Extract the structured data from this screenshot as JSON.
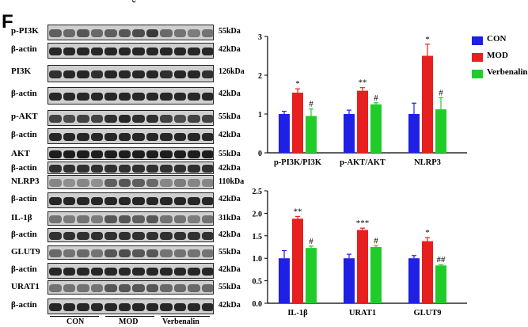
{
  "figure": {
    "panel_letter": "F",
    "top_fragment": "cel"
  },
  "blots": [
    {
      "label": "p-PI3K",
      "size": "55kDa",
      "pattern": [
        0.55,
        0.5,
        0.6,
        0.5,
        0.55,
        0.6,
        0.65,
        0.75,
        0.5,
        0.45,
        0.4,
        0.45
      ]
    },
    {
      "label": "β-actin",
      "size": "42kDa",
      "pattern": [
        0.85,
        0.85,
        0.85,
        0.85,
        0.85,
        0.85,
        0.85,
        0.85,
        0.85,
        0.85,
        0.85,
        0.85
      ]
    },
    {
      "label": "PI3K",
      "size": "126kDa",
      "pattern": [
        0.8,
        0.85,
        0.85,
        0.8,
        0.85,
        0.85,
        0.85,
        0.85,
        0.8,
        0.85,
        0.85,
        0.8
      ]
    },
    {
      "label": "β-actin",
      "size": "42kDa",
      "pattern": [
        0.85,
        0.85,
        0.85,
        0.85,
        0.85,
        0.85,
        0.85,
        0.85,
        0.85,
        0.85,
        0.85,
        0.85
      ]
    },
    {
      "label": "p-AKT",
      "size": "55kDa",
      "pattern": [
        0.7,
        0.65,
        0.7,
        0.7,
        0.8,
        0.85,
        0.8,
        0.8,
        0.7,
        0.65,
        0.7,
        0.7
      ]
    },
    {
      "label": "β-actin",
      "size": "42kDa",
      "pattern": [
        0.85,
        0.85,
        0.85,
        0.85,
        0.85,
        0.85,
        0.85,
        0.85,
        0.85,
        0.85,
        0.85,
        0.85
      ]
    },
    {
      "label": "AKT",
      "size": "55kDa",
      "pattern": [
        0.9,
        0.9,
        0.9,
        0.9,
        0.9,
        0.9,
        0.9,
        0.9,
        0.9,
        0.9,
        0.9,
        0.9
      ]
    },
    {
      "label": "β-actin",
      "size": "42kDa",
      "pattern": [
        0.8,
        0.8,
        0.8,
        0.8,
        0.8,
        0.8,
        0.8,
        0.8,
        0.8,
        0.8,
        0.8,
        0.8
      ]
    },
    {
      "label": "NLRP3",
      "size": "110kDa",
      "pattern": [
        0.35,
        0.3,
        0.35,
        0.3,
        0.55,
        0.6,
        0.55,
        0.5,
        0.35,
        0.4,
        0.35,
        0.35
      ]
    },
    {
      "label": "β-actin",
      "size": "42kDa",
      "pattern": [
        0.85,
        0.85,
        0.85,
        0.85,
        0.85,
        0.85,
        0.85,
        0.85,
        0.85,
        0.85,
        0.85,
        0.85
      ]
    },
    {
      "label": "IL-1β",
      "size": "31kDa",
      "pattern": [
        0.45,
        0.4,
        0.45,
        0.4,
        0.6,
        0.6,
        0.55,
        0.6,
        0.45,
        0.45,
        0.4,
        0.45
      ]
    },
    {
      "label": "β-actin",
      "size": "42kDa",
      "pattern": [
        0.8,
        0.8,
        0.8,
        0.8,
        0.8,
        0.8,
        0.8,
        0.8,
        0.8,
        0.8,
        0.8,
        0.8
      ]
    },
    {
      "label": "GLUT9",
      "size": "55kDa",
      "pattern": [
        0.5,
        0.45,
        0.5,
        0.45,
        0.6,
        0.65,
        0.6,
        0.6,
        0.45,
        0.45,
        0.45,
        0.45
      ]
    },
    {
      "label": "β-actin",
      "size": "42kDa",
      "pattern": [
        0.85,
        0.85,
        0.85,
        0.85,
        0.85,
        0.85,
        0.85,
        0.85,
        0.85,
        0.85,
        0.85,
        0.85
      ]
    },
    {
      "label": "URAT1",
      "size": "55kDa",
      "pattern": [
        0.45,
        0.45,
        0.45,
        0.45,
        0.6,
        0.6,
        0.6,
        0.6,
        0.5,
        0.5,
        0.5,
        0.5
      ]
    },
    {
      "label": "β-actin",
      "size": "42kDa",
      "pattern": [
        0.85,
        0.85,
        0.85,
        0.85,
        0.85,
        0.85,
        0.85,
        0.85,
        0.85,
        0.85,
        0.85,
        0.85
      ]
    }
  ],
  "blot_groups": [
    "CON",
    "MOD",
    "Verbenalin"
  ],
  "legend": [
    {
      "name": "CON",
      "color": "#1f1fe6"
    },
    {
      "name": "MOD",
      "color": "#e61f1f"
    },
    {
      "name": "Verbenalin",
      "color": "#1fcc2a"
    }
  ],
  "chart_data": [
    {
      "type": "bar",
      "categories": [
        "p-PI3K/PI3K",
        "p-AKT/AKT",
        "NLRP3"
      ],
      "series": [
        {
          "name": "CON",
          "values": [
            1.0,
            1.0,
            1.0
          ],
          "errors": [
            0.07,
            0.1,
            0.28
          ]
        },
        {
          "name": "MOD",
          "values": [
            1.55,
            1.6,
            2.5
          ],
          "errors": [
            0.1,
            0.08,
            0.3
          ]
        },
        {
          "name": "Verbenalin",
          "values": [
            0.95,
            1.25,
            1.12
          ],
          "errors": [
            0.18,
            0.04,
            0.3
          ]
        }
      ],
      "annotations": [
        [
          "",
          "*",
          "#"
        ],
        [
          "",
          "**",
          "#"
        ],
        [
          "",
          "*",
          "#"
        ]
      ],
      "ylim": [
        0,
        3
      ],
      "yticks": [
        "0",
        "1",
        "2",
        "3"
      ],
      "xlabel": "",
      "ylabel": "",
      "title": ""
    },
    {
      "type": "bar",
      "categories": [
        "IL-1β",
        "URAT1",
        "GLUT9"
      ],
      "series": [
        {
          "name": "CON",
          "values": [
            1.0,
            1.0,
            1.0
          ],
          "errors": [
            0.17,
            0.09,
            0.06
          ]
        },
        {
          "name": "MOD",
          "values": [
            1.88,
            1.63,
            1.38
          ],
          "errors": [
            0.05,
            0.04,
            0.08
          ]
        },
        {
          "name": "Verbenalin",
          "values": [
            1.23,
            1.25,
            0.84
          ],
          "errors": [
            0.04,
            0.03,
            0.02
          ]
        }
      ],
      "annotations": [
        [
          "",
          "**",
          "#"
        ],
        [
          "",
          "***",
          "#"
        ],
        [
          "",
          "*",
          "##"
        ]
      ],
      "ylim": [
        0,
        2.5
      ],
      "yticks": [
        "0.0",
        "0.5",
        "1.0",
        "1.5",
        "2.0",
        "2.5"
      ],
      "xlabel": "",
      "ylabel": "",
      "title": ""
    }
  ]
}
